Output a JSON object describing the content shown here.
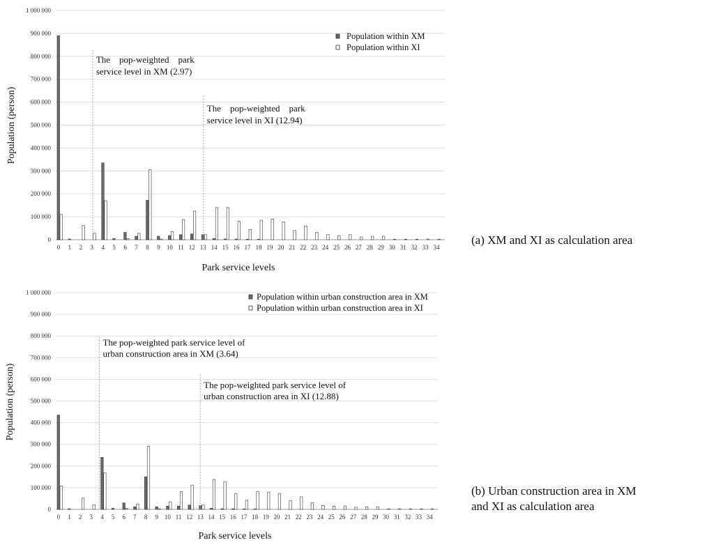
{
  "chart_data": [
    {
      "type": "bar",
      "caption": [
        "(a) XM and XI as calculation area"
      ],
      "xlabel": "Park service levels",
      "ylabel": "Population (person)",
      "ylim": [
        0,
        1000000
      ],
      "yticks": [
        "0",
        "100 000",
        "200 000",
        "300 000",
        "400 000",
        "500 000",
        "600 000",
        "700 000",
        "800 000",
        "900 000",
        "1 000 000"
      ],
      "grid": true,
      "legend_position": "top-right",
      "categories": [
        "0",
        "1",
        "2",
        "3",
        "4",
        "5",
        "6",
        "7",
        "8",
        "9",
        "10",
        "11",
        "12",
        "13",
        "14",
        "15",
        "16",
        "17",
        "18",
        "19",
        "20",
        "21",
        "22",
        "23",
        "24",
        "25",
        "26",
        "27",
        "28",
        "29",
        "30",
        "31",
        "32",
        "33",
        "34"
      ],
      "series": [
        {
          "name": "Population within XM",
          "color": "#6b6b6b",
          "values": [
            890000,
            3000,
            0,
            0,
            335000,
            5000,
            32000,
            15000,
            172000,
            15000,
            18000,
            22000,
            25000,
            22000,
            5000,
            3000,
            3000,
            2000,
            2000,
            0,
            0,
            0,
            0,
            0,
            0,
            0,
            0,
            0,
            0,
            0,
            0,
            0,
            0,
            0,
            0
          ]
        },
        {
          "name": "Population within XI",
          "color": "#ffffff",
          "values": [
            110000,
            0,
            62000,
            28000,
            170000,
            0,
            5000,
            28000,
            305000,
            3000,
            35000,
            88000,
            125000,
            22000,
            140000,
            140000,
            80000,
            45000,
            85000,
            90000,
            78000,
            40000,
            60000,
            32000,
            22000,
            18000,
            22000,
            12000,
            15000,
            15000,
            2000,
            2000,
            2000,
            3000,
            2000
          ]
        }
      ],
      "annotations": [
        {
          "at": 2.97,
          "lines": [
            "The    pop-weighted    park",
            "service level in XM (2.97)"
          ]
        },
        {
          "at": 12.94,
          "lines": [
            "The    pop-weighted    park",
            "service level in XI (12.94)"
          ]
        }
      ]
    },
    {
      "type": "bar",
      "caption": [
        "(b) Urban construction area in XM",
        "and XI as calculation area"
      ],
      "xlabel": "Park service levels",
      "ylabel": "Population (person)",
      "ylim": [
        0,
        1000000
      ],
      "yticks": [
        "0",
        "100 000",
        "200 000",
        "300 000",
        "400 000",
        "500 000",
        "600 000",
        "700 000",
        "800 000",
        "900 000",
        "1 000 000"
      ],
      "grid": true,
      "legend_position": "top-right",
      "categories": [
        "0",
        "1",
        "2",
        "3",
        "4",
        "5",
        "6",
        "7",
        "8",
        "9",
        "10",
        "11",
        "12",
        "13",
        "14",
        "15",
        "16",
        "17",
        "18",
        "19",
        "20",
        "21",
        "22",
        "23",
        "24",
        "25",
        "26",
        "27",
        "28",
        "29",
        "30",
        "31",
        "32",
        "33",
        "34"
      ],
      "series": [
        {
          "name": "Population within urban construction area in XM",
          "color": "#6b6b6b",
          "values": [
            435000,
            3000,
            0,
            0,
            240000,
            5000,
            30000,
            12000,
            150000,
            12000,
            15000,
            15000,
            20000,
            18000,
            5000,
            3000,
            3000,
            2000,
            2000,
            0,
            0,
            0,
            0,
            0,
            0,
            0,
            0,
            0,
            0,
            0,
            0,
            0,
            0,
            0,
            0
          ]
        },
        {
          "name": "Population within urban construction area in XI",
          "color": "#ffffff",
          "values": [
            108000,
            0,
            52000,
            22000,
            168000,
            0,
            5000,
            25000,
            292000,
            3000,
            35000,
            82000,
            112000,
            20000,
            138000,
            128000,
            72000,
            42000,
            82000,
            80000,
            72000,
            40000,
            58000,
            30000,
            18000,
            15000,
            16000,
            10000,
            12000,
            12000,
            3000,
            3000,
            3000,
            3000,
            3000
          ]
        }
      ],
      "annotations": [
        {
          "at": 3.64,
          "lines": [
            "The pop-weighted park service level of",
            "urban construction area in XM (3.64)"
          ]
        },
        {
          "at": 12.88,
          "lines": [
            "The pop-weighted park service level of",
            "urban construction area in XI (12.88)"
          ]
        }
      ]
    }
  ]
}
